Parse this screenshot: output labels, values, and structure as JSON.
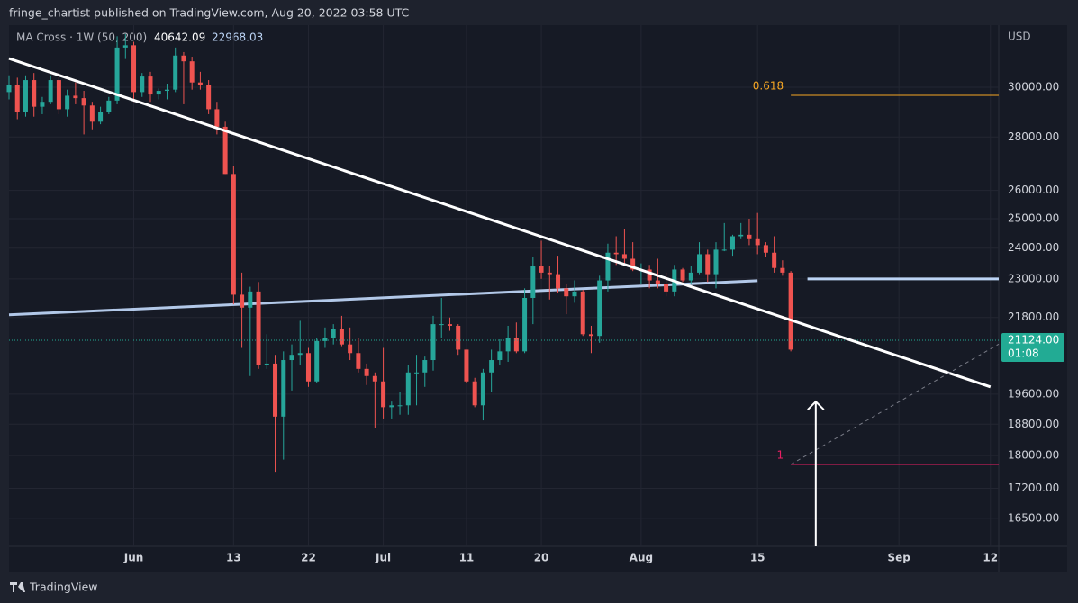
{
  "header": {
    "text": "fringe_chartist published on TradingView.com, Aug 20, 2022 03:58 UTC"
  },
  "footer": {
    "brand": "TradingView"
  },
  "chart_data": {
    "type": "candlestick",
    "indicator": "MA Cross · 1W (50, 200)",
    "indicator_values": [
      40642.09,
      22968.03
    ],
    "currency": "USD",
    "log_scale": true,
    "grid": true,
    "up_color": "#26a69a",
    "down_color": "#ef5350",
    "x": [
      "05-17",
      "05-18",
      "05-19",
      "05-20",
      "05-21",
      "05-22",
      "05-23",
      "05-24",
      "05-25",
      "05-26",
      "05-27",
      "05-28",
      "05-29",
      "05-30",
      "05-31",
      "06-01",
      "06-02",
      "06-03",
      "06-04",
      "06-05",
      "06-06",
      "06-07",
      "06-08",
      "06-09",
      "06-10",
      "06-11",
      "06-12",
      "06-13",
      "06-14",
      "06-15",
      "06-16",
      "06-17",
      "06-18",
      "06-19",
      "06-20",
      "06-21",
      "06-22",
      "06-23",
      "06-24",
      "06-25",
      "06-26",
      "06-27",
      "06-28",
      "06-29",
      "06-30",
      "07-01",
      "07-02",
      "07-03",
      "07-04",
      "07-05",
      "07-06",
      "07-07",
      "07-08",
      "07-09",
      "07-10",
      "07-11",
      "07-12",
      "07-13",
      "07-14",
      "07-15",
      "07-16",
      "07-17",
      "07-18",
      "07-19",
      "07-20",
      "07-21",
      "07-22",
      "07-23",
      "07-24",
      "07-25",
      "07-26",
      "07-27",
      "07-28",
      "07-29",
      "07-30",
      "07-31",
      "08-01",
      "08-02",
      "08-03",
      "08-04",
      "08-05",
      "08-06",
      "08-07",
      "08-08",
      "08-09",
      "08-10",
      "08-11",
      "08-12",
      "08-13",
      "08-14",
      "08-15",
      "08-16",
      "08-17",
      "08-18",
      "08-19"
    ],
    "open": [
      29800,
      30100,
      29000,
      30300,
      29200,
      29400,
      30300,
      29100,
      29650,
      29550,
      29250,
      28600,
      29000,
      29450,
      31700,
      31800,
      29800,
      30450,
      29700,
      29850,
      29900,
      31350,
      31100,
      30200,
      30100,
      29100,
      28400,
      26600,
      22500,
      22100,
      22600,
      20400,
      20450,
      19000,
      20550,
      20700,
      20750,
      19950,
      21100,
      21200,
      21450,
      21000,
      20750,
      20300,
      20100,
      19950,
      19250,
      19300,
      19300,
      20200,
      20200,
      20550,
      21600,
      21600,
      21550,
      20850,
      19950,
      19300,
      20200,
      20550,
      20800,
      21200,
      20800,
      22400,
      23400,
      23200,
      23150,
      22700,
      22450,
      22600,
      21300,
      21250,
      22950,
      23850,
      23800,
      23650,
      23300,
      23300,
      22950,
      22850,
      22600,
      23300,
      22950,
      23200,
      23800,
      23150,
      23950,
      23950,
      24400,
      24450,
      24300,
      24100,
      23850,
      23350,
      23200
    ],
    "high": [
      30500,
      30400,
      30500,
      30600,
      29600,
      30500,
      30600,
      29900,
      30200,
      29850,
      29400,
      29200,
      29600,
      32200,
      32300,
      31950,
      30600,
      30650,
      29950,
      30150,
      31700,
      31500,
      31300,
      30650,
      30300,
      29400,
      28600,
      26900,
      23200,
      22750,
      22900,
      21300,
      20700,
      20800,
      21000,
      21700,
      20900,
      21200,
      21500,
      21600,
      21850,
      21500,
      21200,
      20450,
      20200,
      20900,
      19400,
      19650,
      20400,
      20700,
      20650,
      21850,
      22400,
      21800,
      21600,
      20850,
      20050,
      20300,
      20850,
      21150,
      21550,
      21650,
      22700,
      23700,
      24250,
      23400,
      23750,
      22850,
      22950,
      22650,
      21550,
      23100,
      24150,
      24400,
      24650,
      24200,
      23500,
      23450,
      23650,
      23200,
      23450,
      23350,
      23400,
      24200,
      23950,
      24200,
      24850,
      24450,
      24850,
      25000,
      25200,
      24200,
      24400,
      23600,
      23250
    ],
    "low": [
      29500,
      28700,
      28800,
      28800,
      28900,
      29300,
      28900,
      28800,
      29300,
      28100,
      28300,
      28500,
      28900,
      29300,
      31200,
      29400,
      29600,
      29400,
      29500,
      29500,
      29800,
      29300,
      29900,
      29900,
      28900,
      28100,
      26600,
      22200,
      20900,
      20100,
      20300,
      20300,
      17600,
      17900,
      19700,
      20400,
      19800,
      19900,
      20900,
      21000,
      20950,
      20550,
      20200,
      19850,
      18700,
      18950,
      18950,
      19050,
      19050,
      19300,
      19800,
      20250,
      21200,
      21400,
      20700,
      19900,
      19250,
      18900,
      19650,
      20400,
      20500,
      20750,
      20750,
      21600,
      23000,
      22350,
      22550,
      21900,
      22250,
      21250,
      20750,
      21050,
      22600,
      23450,
      23500,
      23250,
      22850,
      22700,
      22700,
      22450,
      22450,
      22900,
      22850,
      23150,
      22900,
      22700,
      23900,
      23750,
      24300,
      24100,
      23800,
      23700,
      23200,
      23100,
      20800
    ],
    "close": [
      30100,
      29000,
      30300,
      29200,
      29400,
      30300,
      29100,
      29650,
      29550,
      29250,
      28600,
      29000,
      29450,
      31700,
      31800,
      29800,
      30450,
      29700,
      29850,
      29900,
      31350,
      31100,
      30200,
      30100,
      29100,
      28400,
      26600,
      22500,
      22100,
      22600,
      20400,
      20450,
      19000,
      20550,
      20700,
      20750,
      19950,
      21100,
      21200,
      21450,
      21000,
      20750,
      20300,
      20100,
      19950,
      19250,
      19300,
      19300,
      20200,
      20200,
      20550,
      21600,
      21600,
      21550,
      20850,
      19950,
      19300,
      20200,
      20550,
      20800,
      21200,
      20800,
      22400,
      23400,
      23200,
      23150,
      22700,
      22450,
      22600,
      21300,
      21250,
      22950,
      23850,
      23800,
      23650,
      23300,
      23300,
      22950,
      22850,
      22600,
      23300,
      22950,
      23200,
      23800,
      23150,
      23950,
      23950,
      24400,
      24450,
      24300,
      24100,
      23850,
      23350,
      23200,
      20850
    ],
    "xlim": [
      "05-17",
      "09-13"
    ],
    "xticks": [
      {
        "value": "06-01",
        "label": "Jun"
      },
      {
        "value": "06-13",
        "label": "13"
      },
      {
        "value": "06-22",
        "label": "22"
      },
      {
        "value": "07-01",
        "label": "Jul"
      },
      {
        "value": "07-11",
        "label": "11"
      },
      {
        "value": "07-20",
        "label": "20"
      },
      {
        "value": "08-01",
        "label": "Aug"
      },
      {
        "value": "08-15",
        "label": "15"
      },
      {
        "value": "09-01",
        "label": "Sep"
      },
      {
        "value": "09-12",
        "label": "12"
      }
    ],
    "ylim": [
      15870,
      32700
    ],
    "yticks": [
      {
        "value": 16500,
        "label": "16500.00"
      },
      {
        "value": 17200,
        "label": "17200.00"
      },
      {
        "value": 18000,
        "label": "18000.00"
      },
      {
        "value": 18800,
        "label": "18800.00"
      },
      {
        "value": 19600,
        "label": "19600.00"
      },
      {
        "value": 21800,
        "label": "21800.00"
      },
      {
        "value": 23000,
        "label": "23000.00"
      },
      {
        "value": 24000,
        "label": "24000.00"
      },
      {
        "value": 25000,
        "label": "25000.00"
      },
      {
        "value": 26000,
        "label": "26000.00"
      },
      {
        "value": 28000,
        "label": "28000.00"
      },
      {
        "value": 30000,
        "label": "30000.00"
      }
    ],
    "last_price": {
      "value": 21124,
      "label": "21124.00"
    },
    "countdown": "01:08",
    "last_price_color": "#22ab94",
    "trendline": {
      "x": [
        "05-17",
        "09-12"
      ],
      "y": [
        31220,
        19800
      ],
      "color": "#ffffff"
    },
    "ma_line": {
      "x": [
        "05-17",
        "08-15"
      ],
      "y": [
        21880,
        22940
      ],
      "color": "#b2c8e8"
    },
    "level_line": {
      "x": [
        "08-21",
        "09-13"
      ],
      "y": 23000,
      "color": "#bcd4f5"
    },
    "fib": {
      "x": [
        "08-19",
        "09-13"
      ],
      "levels": [
        {
          "value": 29665,
          "label": "0.618",
          "color": "#f5a623"
        },
        {
          "value": 17780,
          "label": "1",
          "color": "#e91e63"
        }
      ]
    },
    "dashed_line": {
      "x": [
        "08-19",
        "09-13"
      ],
      "y": [
        17780,
        21010
      ],
      "color": "#787b86"
    },
    "arrow": {
      "x": "08-22",
      "y": 19400,
      "color": "#ffffff"
    }
  }
}
